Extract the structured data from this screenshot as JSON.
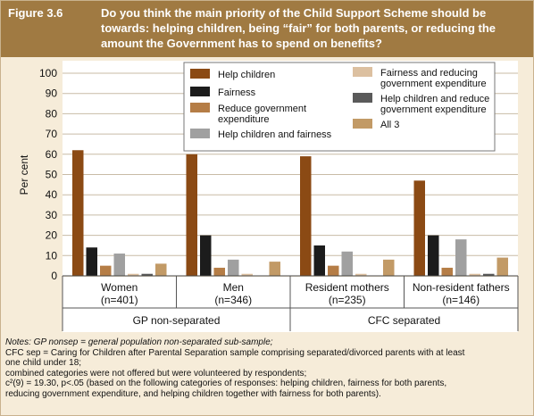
{
  "figure": {
    "label": "Figure 3.6",
    "title": "Do you think the main priority of the Child Support Scheme should be towards: helping children, being “fair” for both parents, or reducing the amount the Government has to spend on benefits?"
  },
  "chart_data": {
    "type": "bar",
    "ylabel": "Per cent",
    "xlabel": "",
    "ylim": [
      0,
      100
    ],
    "yticks": [
      0,
      10,
      20,
      30,
      40,
      50,
      60,
      70,
      80,
      90,
      100
    ],
    "grid": true,
    "legend_position": "top",
    "categories": [
      {
        "name": "Women",
        "n": "(n=401)"
      },
      {
        "name": "Men",
        "n": "(n=346)"
      },
      {
        "name": "Resident mothers",
        "n": "(n=235)"
      },
      {
        "name": "Non-resident fathers",
        "n": "(n=146)"
      }
    ],
    "groups": [
      {
        "label": "GP non-separated",
        "categories": [
          0,
          1
        ]
      },
      {
        "label": "CFC separated",
        "categories": [
          2,
          3
        ]
      }
    ],
    "series": [
      {
        "name": "Help children",
        "color": "#8b4a14",
        "values": [
          62,
          60,
          59,
          47
        ]
      },
      {
        "name": "Fairness",
        "color": "#1c1c1c",
        "values": [
          14,
          20,
          15,
          20
        ]
      },
      {
        "name": "Reduce government expenditure",
        "color": "#b57d46",
        "values": [
          5,
          4,
          5,
          4
        ]
      },
      {
        "name": "Help children and fairness",
        "color": "#a0a0a0",
        "values": [
          11,
          8,
          12,
          18
        ]
      },
      {
        "name": "Fairness and reducing government expenditure",
        "color": "#dcc0a0",
        "values": [
          1,
          1,
          1,
          1
        ]
      },
      {
        "name": "Help children and reduce government expenditure",
        "color": "#5a5a5a",
        "values": [
          1,
          0,
          0,
          1
        ]
      },
      {
        "name": "All 3",
        "color": "#c29a66",
        "values": [
          6,
          7,
          8,
          9
        ]
      }
    ],
    "legend": {
      "left": [
        {
          "series": 0,
          "lines": [
            "Help children"
          ]
        },
        {
          "series": 1,
          "lines": [
            "Fairness"
          ]
        },
        {
          "series": 2,
          "lines": [
            "Reduce government",
            "expenditure"
          ]
        },
        {
          "series": 3,
          "lines": [
            "Help children and fairness"
          ]
        }
      ],
      "right": [
        {
          "series": 4,
          "lines": [
            "Fairness and reducing",
            "government expenditure"
          ]
        },
        {
          "series": 5,
          "lines": [
            "Help children and reduce",
            "government expenditure"
          ]
        },
        {
          "series": 6,
          "lines": [
            "All 3"
          ]
        }
      ]
    }
  },
  "notes": [
    {
      "style": "italic",
      "text": "Notes: GP nonsep = general population non-separated sub-sample;"
    },
    {
      "style": "normal",
      "text": "CFC sep = Caring for Children after Parental Separation sample comprising separated/divorced parents with at least"
    },
    {
      "style": "normal",
      "text": "one child under 18;"
    },
    {
      "style": "normal",
      "text": "combined categories were not offered but were volunteered by respondents;"
    },
    {
      "style": "normal",
      "text": "c²(9) = 19.30, p<.05 (based on the following categories of responses: helping children, fairness for both parents,"
    },
    {
      "style": "normal",
      "text": "reducing government expenditure, and helping children together with fairness for both parents)."
    }
  ]
}
